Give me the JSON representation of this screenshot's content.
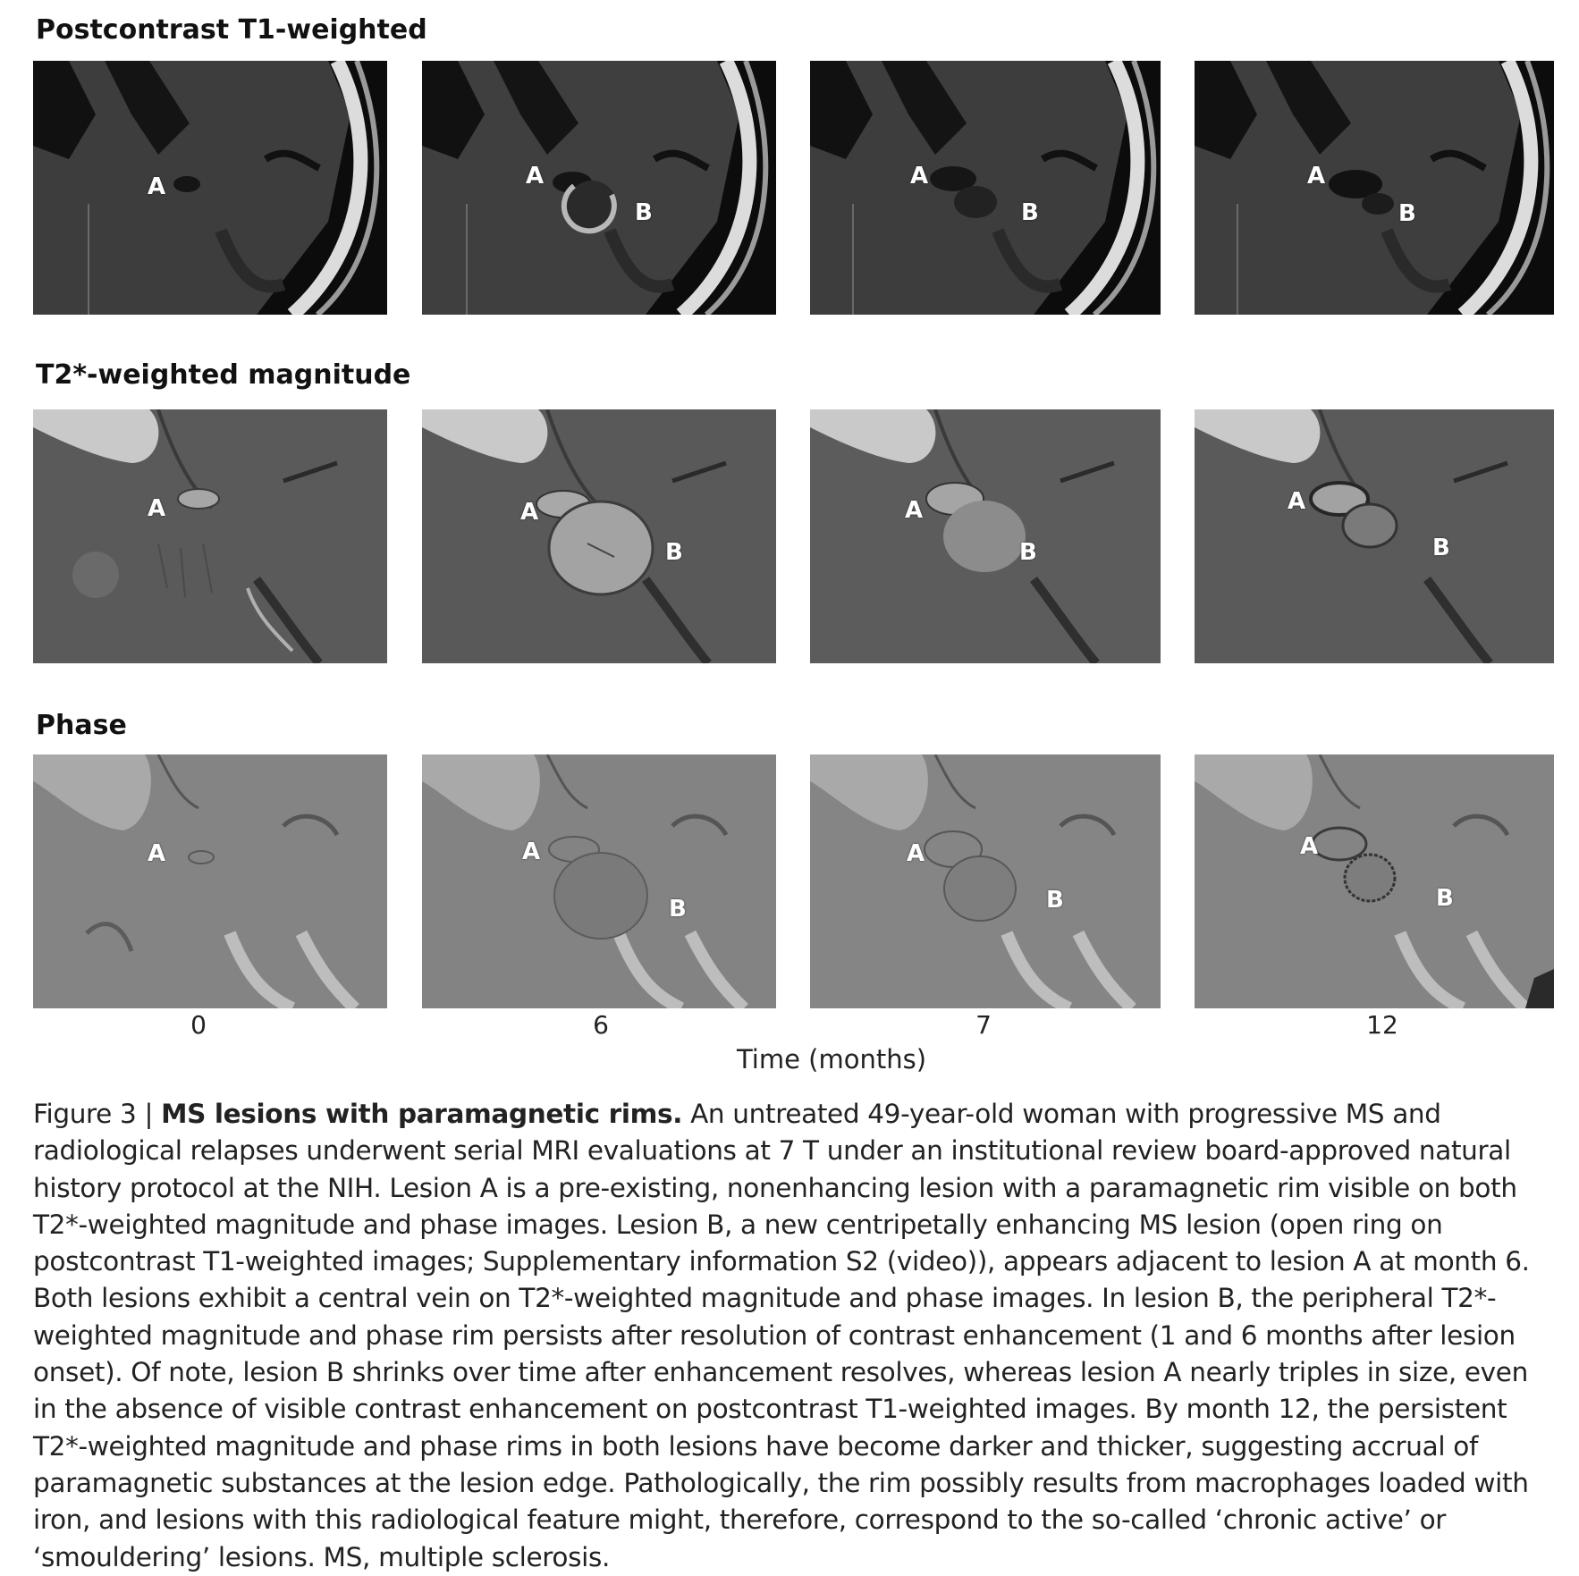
{
  "rows": [
    {
      "title": "Postcontrast T1-weighted"
    },
    {
      "title": "T2*-weighted magnitude"
    },
    {
      "title": "Phase"
    }
  ],
  "lesion_labels": {
    "a": "A",
    "b": "B"
  },
  "time_axis": {
    "ticks": [
      "0",
      "6",
      "7",
      "12"
    ],
    "label": "Time (months)"
  },
  "caption": {
    "figure_label": "Figure 3 | ",
    "title": "MS lesions with paramagnetic rims.",
    "body": " An untreated 49-year-old woman with progressive MS and radiological relapses underwent serial MRI evaluations at 7 T under an institutional review board-approved natural history protocol at the NIH. Lesion A is a pre-existing, nonenhancing lesion with a paramagnetic rim visible on both T2*-weighted magnitude and phase images. Lesion B, a new centripetally enhancing MS lesion (open ring on postcontrast T1-weighted images; Supplementary information S2 (video)), appears adjacent to lesion A at month 6. Both lesions exhibit a central vein on T2*-weighted magnitude and phase images. In lesion B, the peripheral T2*-weighted magnitude and phase rim persists after resolution of contrast enhancement (1 and 6 months after lesion onset). Of note, lesion B shrinks over time after enhancement resolves, whereas lesion A nearly triples in size, even in the absence of visible contrast enhancement on postcontrast T1-weighted images. By month 12, the persistent T2*-weighted magnitude and phase rims in both lesions have become darker and thicker, suggesting accrual of paramagnetic substances at the lesion edge. Pathologically, the rim possibly results from macrophages loaded with iron, and lesions with this radiological feature might, therefore, correspond to the so-called ‘chronic active’ or ‘smouldering’ lesions. MS, multiple sclerosis."
  }
}
